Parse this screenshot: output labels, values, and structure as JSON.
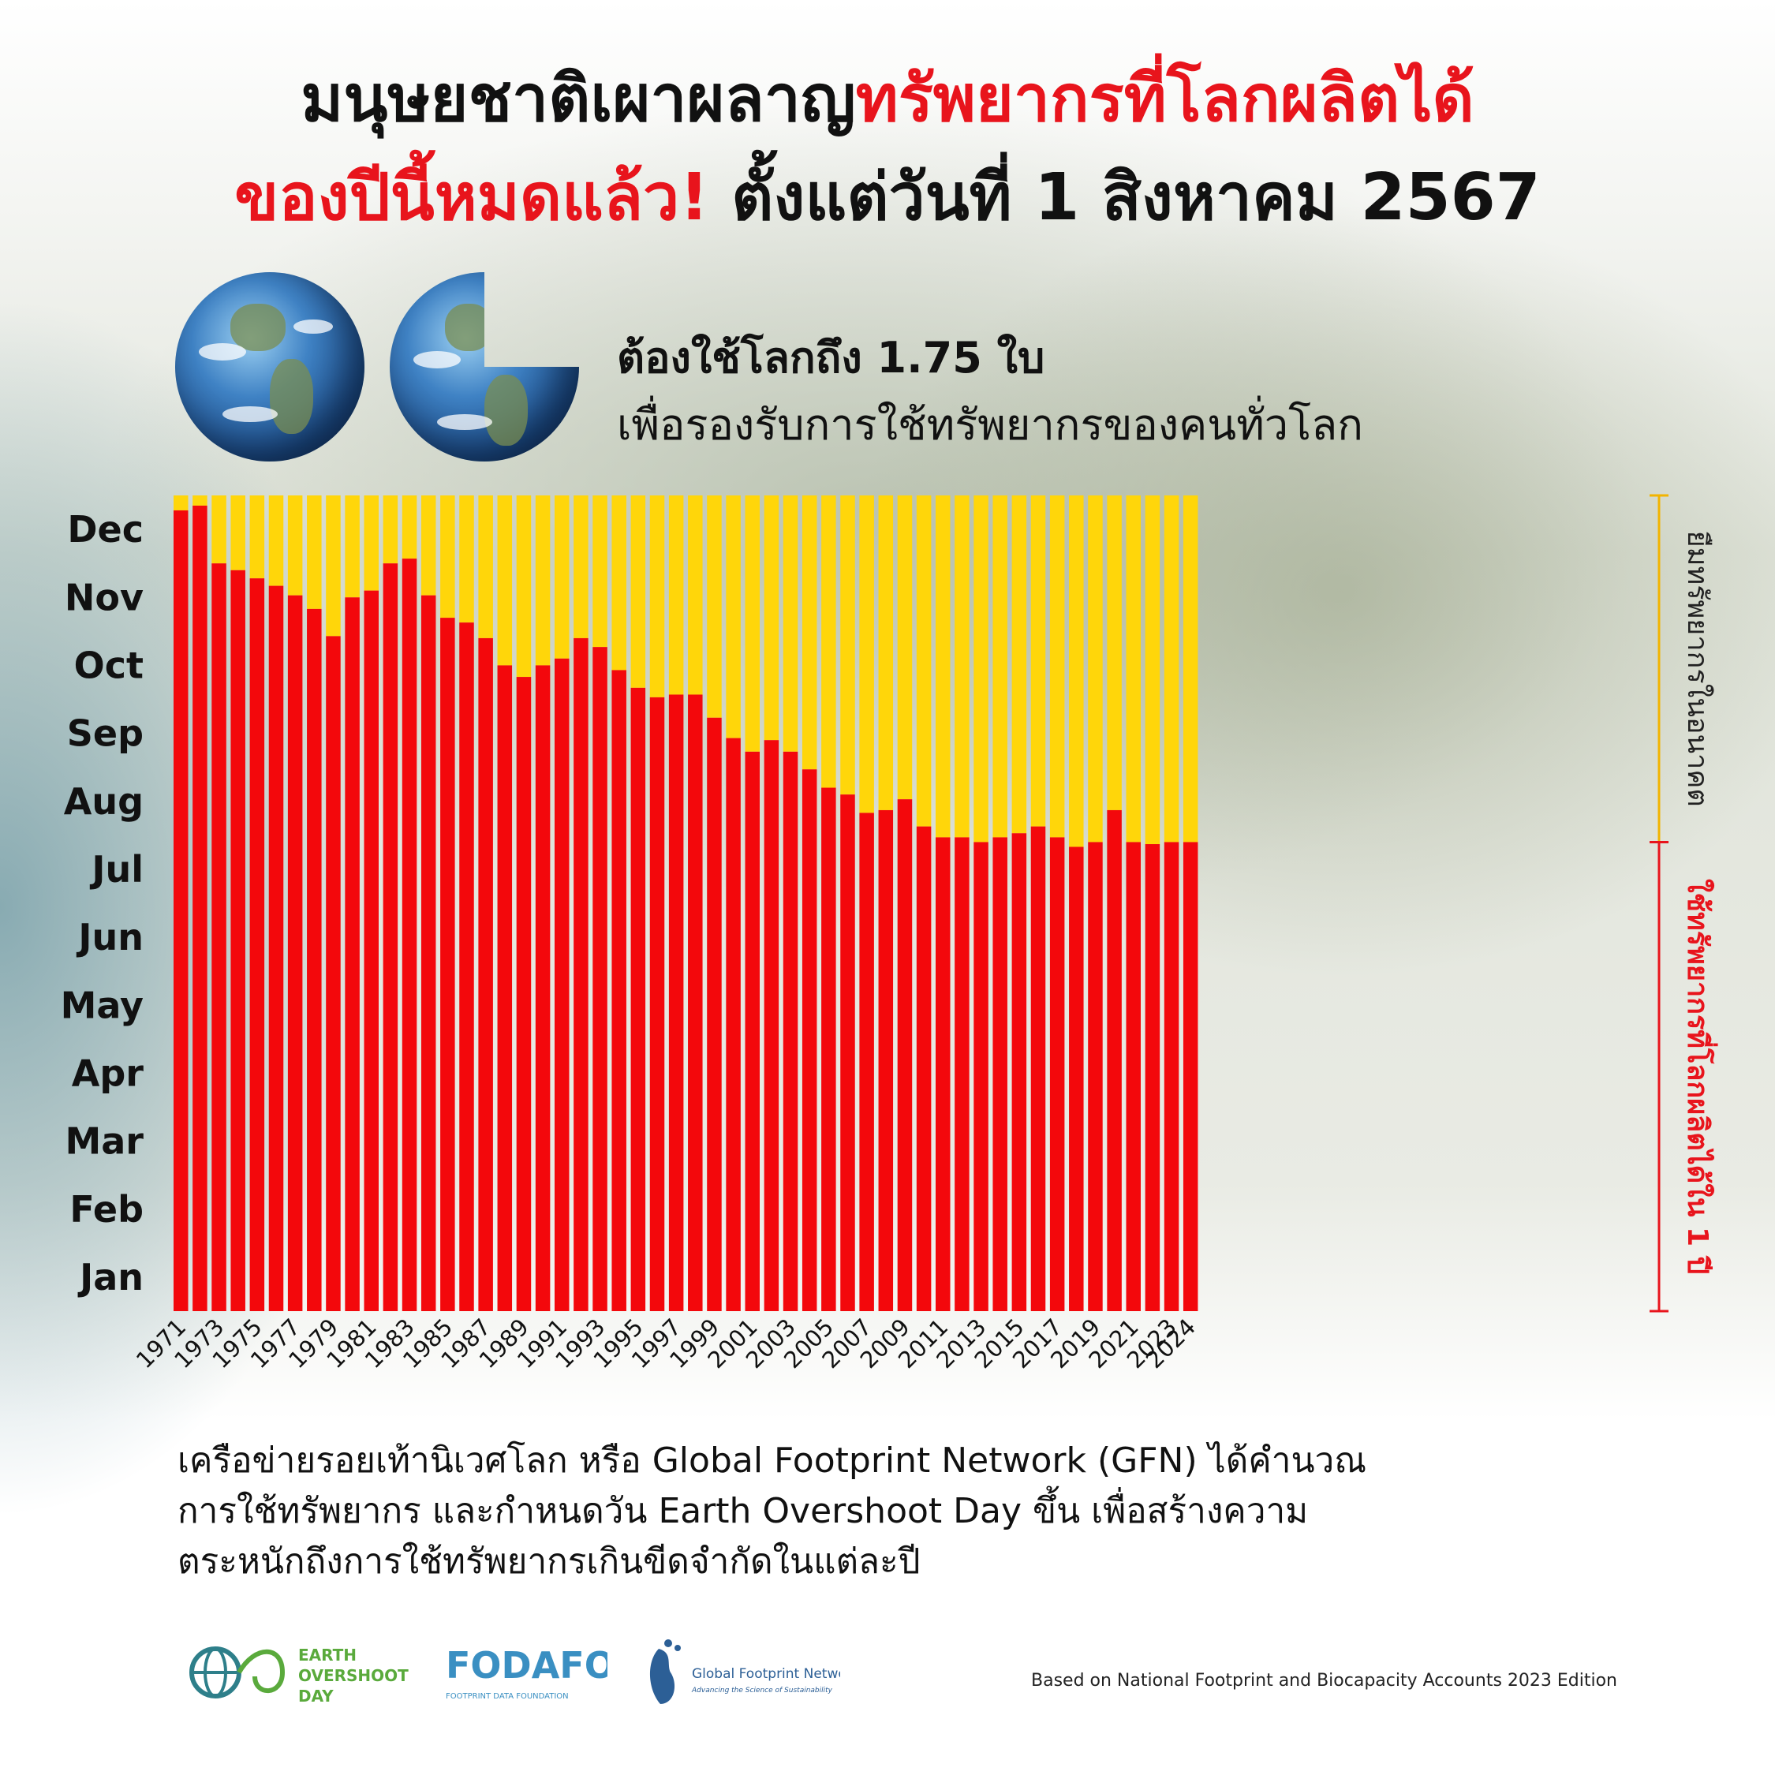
{
  "header": {
    "line1_black": "มนุษยชาติเผาผลาญ",
    "line1_red": "ทรัพยากรที่โลกผลิตได้",
    "line2_red": "ของปีนี้หมดแล้ว!",
    "line2_black": " ตั้งแต่วันที่ 1 สิงหาคม 2567"
  },
  "subheader": {
    "bold": "ต้องใช้โลกถึง 1.75 ใบ",
    "text": "เพื่อรองรับการใช้ทรัพยากรของคนทั่วโลก"
  },
  "colors": {
    "used": "#f3080c",
    "borrowed": "#ffd60a",
    "bracket_used": "#e8141c",
    "bracket_borrowed": "#f2b400"
  },
  "chart_data": {
    "type": "bar",
    "stacked": true,
    "y_tick_labels": [
      "Jan",
      "Feb",
      "Mar",
      "Apr",
      "May",
      "Jun",
      "Jul",
      "Aug",
      "Sep",
      "Oct",
      "Nov",
      "Dec"
    ],
    "ylim": [
      0,
      12
    ],
    "x_tick_labels": [
      "1971",
      "1973",
      "1975",
      "1977",
      "1979",
      "1981",
      "1983",
      "1985",
      "1987",
      "1989",
      "1991",
      "1993",
      "1995",
      "1997",
      "1999",
      "2001",
      "2003",
      "2005",
      "2007",
      "2009",
      "2011",
      "2013",
      "2015",
      "2017",
      "2019",
      "2021",
      "2023",
      "2024"
    ],
    "categories": [
      1971,
      1972,
      1973,
      1974,
      1975,
      1976,
      1977,
      1978,
      1979,
      1980,
      1981,
      1982,
      1983,
      1984,
      1985,
      1986,
      1987,
      1988,
      1989,
      1990,
      1991,
      1992,
      1993,
      1994,
      1995,
      1996,
      1997,
      1998,
      1999,
      2000,
      2001,
      2002,
      2003,
      2004,
      2005,
      2006,
      2007,
      2008,
      2009,
      2010,
      2011,
      2012,
      2013,
      2014,
      2015,
      2016,
      2017,
      2018,
      2019,
      2020,
      2021,
      2022,
      2023,
      2024
    ],
    "series": [
      {
        "name": "ใช้ทรัพยากรที่โลกผลิตได้ใน 1 ปี",
        "values": [
          11.78,
          11.85,
          11.0,
          10.9,
          10.78,
          10.67,
          10.53,
          10.33,
          9.93,
          10.5,
          10.6,
          11.0,
          11.07,
          10.53,
          10.2,
          10.13,
          9.9,
          9.5,
          9.33,
          9.5,
          9.6,
          9.9,
          9.77,
          9.43,
          9.17,
          9.03,
          9.07,
          9.07,
          8.73,
          8.43,
          8.23,
          8.4,
          8.23,
          7.97,
          7.7,
          7.6,
          7.33,
          7.37,
          7.53,
          7.13,
          6.97,
          6.97,
          6.9,
          6.97,
          7.03,
          7.13,
          6.97,
          6.83,
          6.9,
          7.37,
          6.9,
          6.87,
          6.9,
          6.9
        ]
      },
      {
        "name": "ยืมทรัพยากรในอนาคต",
        "values": [
          0.22,
          0.15,
          1.0,
          1.1,
          1.22,
          1.33,
          1.47,
          1.67,
          2.07,
          1.5,
          1.4,
          1.0,
          0.93,
          1.47,
          1.8,
          1.87,
          2.1,
          2.5,
          2.67,
          2.5,
          2.4,
          2.1,
          2.23,
          2.57,
          2.83,
          2.97,
          2.93,
          2.93,
          3.27,
          3.57,
          3.77,
          3.6,
          3.77,
          4.03,
          4.3,
          4.4,
          4.67,
          4.63,
          4.47,
          4.87,
          5.03,
          5.03,
          5.1,
          5.03,
          4.97,
          4.87,
          5.03,
          5.17,
          5.1,
          4.63,
          5.1,
          5.13,
          5.1,
          5.1
        ]
      }
    ]
  },
  "description": {
    "line1": "เครือข่ายรอยเท้านิเวศโลก หรือ Global Footprint Network (GFN) ได้คำนวณ",
    "line2": "การใช้ทรัพยากร และกำหนดวัน Earth Overshoot Day ขึ้น เพื่อสร้างความ",
    "line3": "ตระหนักถึงการใช้ทรัพยากรเกินขีดจำกัดในแต่ละปี"
  },
  "logos": {
    "eod": [
      "EARTH",
      "OVERSHOOT",
      "DAY"
    ],
    "fodafo_name": "FODAFO",
    "fodafo_sub": "FOOTPRINT DATA FOUNDATION",
    "gfn_name": "Global Footprint Network",
    "gfn_tagline": "Advancing the Science of Sustainability"
  },
  "source": "Based on National Footprint and Biocapacity Accounts 2023 Edition"
}
